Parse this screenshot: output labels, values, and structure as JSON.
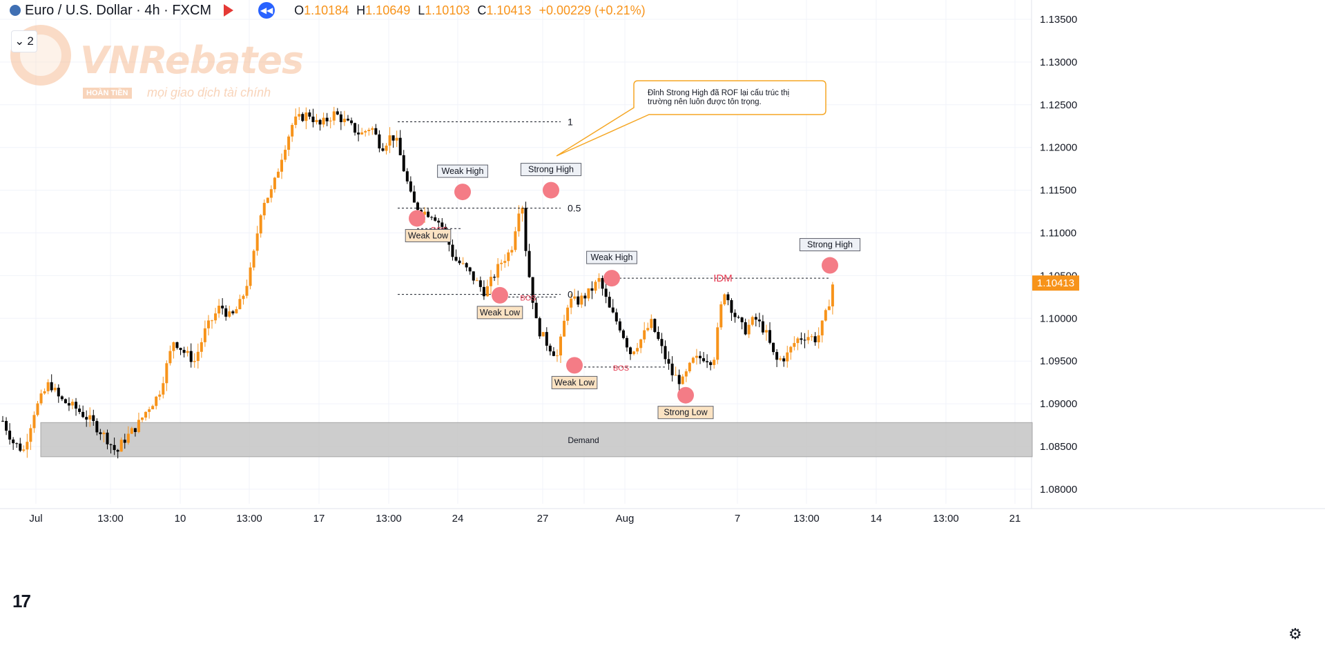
{
  "header": {
    "title": "Euro / U.S. Dollar · 4h · FXCM",
    "ohlc": [
      {
        "k": "O",
        "v": "1.10184"
      },
      {
        "k": "H",
        "v": "1.10649"
      },
      {
        "k": "L",
        "v": "1.10103"
      },
      {
        "k": "C",
        "v": "1.10413"
      }
    ],
    "change": "+0.00229 (+0.21%)",
    "collapse_count": "2"
  },
  "watermark": {
    "brand": "VNRebates",
    "badge": "HOÀN TIỀN",
    "tagline": "mọi giao dịch tài chính"
  },
  "colors": {
    "up": "#f7931a",
    "down": "#000000",
    "zone": "#c8c8c8",
    "marker": "#f47c86",
    "accent": "#2962ff"
  },
  "chart_data": {
    "type": "candlestick",
    "y_ticks": [
      "1.13500",
      "1.13000",
      "1.12500",
      "1.12000",
      "1.11500",
      "1.11000",
      "1.10500",
      "1.10000",
      "1.09500",
      "1.09000",
      "1.08500",
      "1.08000"
    ],
    "ylim": [
      1.0775,
      1.1375
    ],
    "x_ticks": [
      "Jul",
      "13:00",
      "10",
      "13:00",
      "17",
      "13:00",
      "24",
      "27",
      "13:00",
      "Aug",
      "7",
      "13:00",
      "14",
      "13:00",
      "21"
    ],
    "last_price": "1.10413",
    "path": [
      [
        0,
        1.088
      ],
      [
        4,
        1.0855
      ],
      [
        8,
        1.0845
      ],
      [
        12,
        1.089
      ],
      [
        18,
        1.0925
      ],
      [
        22,
        1.0905
      ],
      [
        28,
        1.0895
      ],
      [
        34,
        1.088
      ],
      [
        40,
        1.086
      ],
      [
        44,
        1.0842
      ],
      [
        46,
        1.0855
      ],
      [
        52,
        1.0875
      ],
      [
        56,
        1.0895
      ],
      [
        60,
        1.091
      ],
      [
        66,
        1.0975
      ],
      [
        70,
        1.096
      ],
      [
        74,
        1.095
      ],
      [
        78,
        1.0985
      ],
      [
        84,
        1.1015
      ],
      [
        88,
        1.1
      ],
      [
        92,
        1.102
      ],
      [
        96,
        1.106
      ],
      [
        100,
        1.1135
      ],
      [
        104,
        1.115
      ],
      [
        108,
        1.1195
      ],
      [
        112,
        1.123
      ],
      [
        118,
        1.124
      ],
      [
        122,
        1.1225
      ],
      [
        128,
        1.124
      ],
      [
        134,
        1.1225
      ],
      [
        138,
        1.1215
      ],
      [
        142,
        1.1225
      ],
      [
        146,
        1.12
      ],
      [
        150,
        1.1215
      ],
      [
        152,
        1.1205
      ],
      [
        158,
        1.1135
      ],
      [
        162,
        1.1125
      ],
      [
        166,
        1.1122
      ],
      [
        170,
        1.1105
      ],
      [
        174,
        1.107
      ],
      [
        178,
        1.106
      ],
      [
        182,
        1.1045
      ],
      [
        186,
        1.103
      ],
      [
        192,
        1.1065
      ],
      [
        196,
        1.108
      ],
      [
        200,
        1.1145
      ],
      [
        202,
        1.107
      ],
      [
        206,
        1.099
      ],
      [
        210,
        1.097
      ],
      [
        214,
        1.0955
      ],
      [
        218,
        1.102
      ],
      [
        222,
        1.102
      ],
      [
        226,
        1.103
      ],
      [
        230,
        1.1045
      ],
      [
        234,
        1.101
      ],
      [
        238,
        1.099
      ],
      [
        242,
        1.096
      ],
      [
        246,
        1.0975
      ],
      [
        250,
        1.0995
      ],
      [
        254,
        1.0965
      ],
      [
        258,
        1.0935
      ],
      [
        262,
        1.0925
      ],
      [
        266,
        1.095
      ],
      [
        270,
        1.0955
      ],
      [
        274,
        1.095
      ],
      [
        278,
        1.1035
      ],
      [
        282,
        1.1005
      ],
      [
        286,
        1.0985
      ],
      [
        290,
        1.1
      ],
      [
        294,
        1.0985
      ],
      [
        298,
        1.095
      ],
      [
        302,
        1.0955
      ],
      [
        306,
        1.0975
      ],
      [
        310,
        1.098
      ],
      [
        314,
        1.0975
      ],
      [
        318,
        1.101
      ],
      [
        320,
        1.104
      ]
    ],
    "bos_levels": [
      {
        "label": "BOS",
        "price": 1.1105
      },
      {
        "label": "BOS",
        "price": 1.1025
      },
      {
        "label": "BOS",
        "price": 1.0943
      }
    ],
    "fib": [
      {
        "label": "1",
        "price": 1.123
      },
      {
        "label": "0.5",
        "price": 1.1129
      },
      {
        "label": "0",
        "price": 1.1028
      }
    ],
    "idm": {
      "label": "IDM",
      "price": 1.1047
    },
    "zone": {
      "label": "Demand",
      "top": 1.0878,
      "bottom": 1.0838
    },
    "annotations": [
      {
        "label": "Weak Low",
        "kind": "low",
        "price": 1.1117
      },
      {
        "label": "Weak High",
        "kind": "high",
        "price": 1.1148
      },
      {
        "label": "Weak Low",
        "kind": "low",
        "price": 1.1027
      },
      {
        "label": "Strong High",
        "kind": "high",
        "price": 1.115
      },
      {
        "label": "Weak Low",
        "kind": "low",
        "price": 1.0945
      },
      {
        "label": "Weak High",
        "kind": "high",
        "price": 1.1047
      },
      {
        "label": "Strong Low",
        "kind": "low",
        "price": 1.091
      },
      {
        "label": "Strong High",
        "kind": "high",
        "price": 1.1062
      }
    ],
    "callout": "Đỉnh Strong High đã ROF lại cấu trúc thị trường nên luôn được tôn trọng."
  }
}
